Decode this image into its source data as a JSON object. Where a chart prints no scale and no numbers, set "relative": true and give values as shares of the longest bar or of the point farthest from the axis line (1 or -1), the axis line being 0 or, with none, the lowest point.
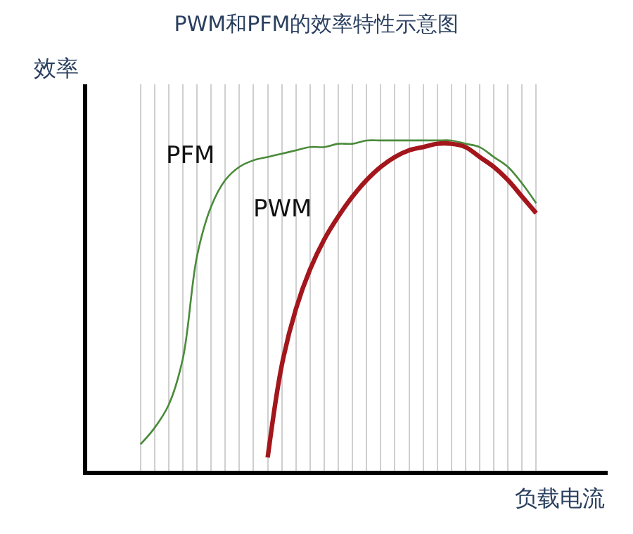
{
  "chart_data": {
    "type": "line",
    "title": "PWM和PFM的效率特性示意图",
    "xlabel": "负载电流",
    "ylabel": "效率",
    "relative": true,
    "grid": "x",
    "legend": false,
    "marker": "none",
    "line_style": "solid",
    "categories": [
      null,
      null,
      null,
      null,
      null,
      null,
      null,
      null,
      null,
      null,
      null,
      null,
      null,
      null,
      null,
      null,
      null,
      null,
      null,
      null,
      null,
      null,
      null,
      null,
      null,
      null,
      null,
      null,
      null
    ],
    "series": [
      {
        "name": "PFM",
        "color": "#4a8a3a",
        "values": [
          0.08,
          0.13,
          0.2,
          0.34,
          0.65,
          0.8,
          0.88,
          0.92,
          0.94,
          0.95,
          0.96,
          0.97,
          0.98,
          0.98,
          0.99,
          0.99,
          1,
          1,
          1,
          1,
          1,
          1,
          1,
          0.99,
          0.98,
          0.95,
          0.92,
          0.87,
          0.81
        ]
      },
      {
        "name": "PWM",
        "color": "#a3161c",
        "values": [
          null,
          null,
          null,
          null,
          null,
          null,
          null,
          null,
          null,
          0.04,
          0.32,
          0.49,
          0.61,
          0.7,
          0.77,
          0.83,
          0.88,
          0.92,
          0.95,
          0.97,
          0.98,
          0.99,
          0.99,
          0.98,
          0.95,
          0.92,
          0.88,
          0.83,
          0.78
        ]
      }
    ]
  }
}
